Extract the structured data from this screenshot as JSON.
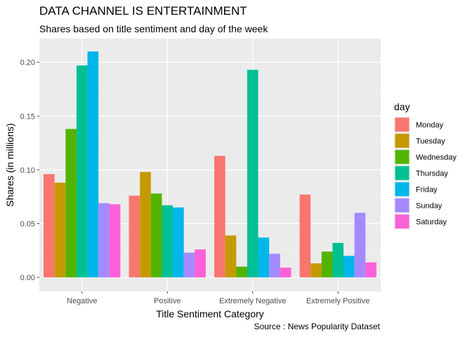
{
  "chart_data": {
    "type": "bar",
    "title": "DATA CHANNEL IS ENTERTAINMENT",
    "subtitle": "Shares based on title sentiment and day of the week",
    "caption": "Source : News Popularity Dataset",
    "xlabel": "Title Sentiment Category",
    "ylabel": "Shares (in millions)",
    "ylim": [
      -0.013,
      0.222
    ],
    "yticks": [
      0.0,
      0.05,
      0.1,
      0.15,
      0.2
    ],
    "ytick_labels": [
      "0.00",
      "0.05",
      "0.10",
      "0.15",
      "0.20"
    ],
    "categories": [
      "Negative",
      "Positive",
      "Extremely Negative",
      "Extremely Positive"
    ],
    "legend_title": "day",
    "legend_position": "right",
    "grid": true,
    "series": [
      {
        "name": "Monday",
        "color": "#F8766D",
        "values": [
          0.096,
          0.076,
          0.113,
          0.077
        ]
      },
      {
        "name": "Tuesday",
        "color": "#C49A00",
        "values": [
          0.088,
          0.098,
          0.039,
          0.013
        ]
      },
      {
        "name": "Wednesday",
        "color": "#53B400",
        "values": [
          0.138,
          0.078,
          0.01,
          0.024
        ]
      },
      {
        "name": "Thursday",
        "color": "#00C094",
        "values": [
          0.197,
          0.067,
          0.193,
          0.032
        ]
      },
      {
        "name": "Friday",
        "color": "#00B6EB",
        "values": [
          0.21,
          0.065,
          0.037,
          0.02
        ]
      },
      {
        "name": "Sunday",
        "color": "#A58AFF",
        "values": [
          0.069,
          0.023,
          0.022,
          0.06
        ]
      },
      {
        "name": "Saturday",
        "color": "#FB61D7",
        "values": [
          0.068,
          0.026,
          0.009,
          0.014
        ]
      }
    ]
  }
}
